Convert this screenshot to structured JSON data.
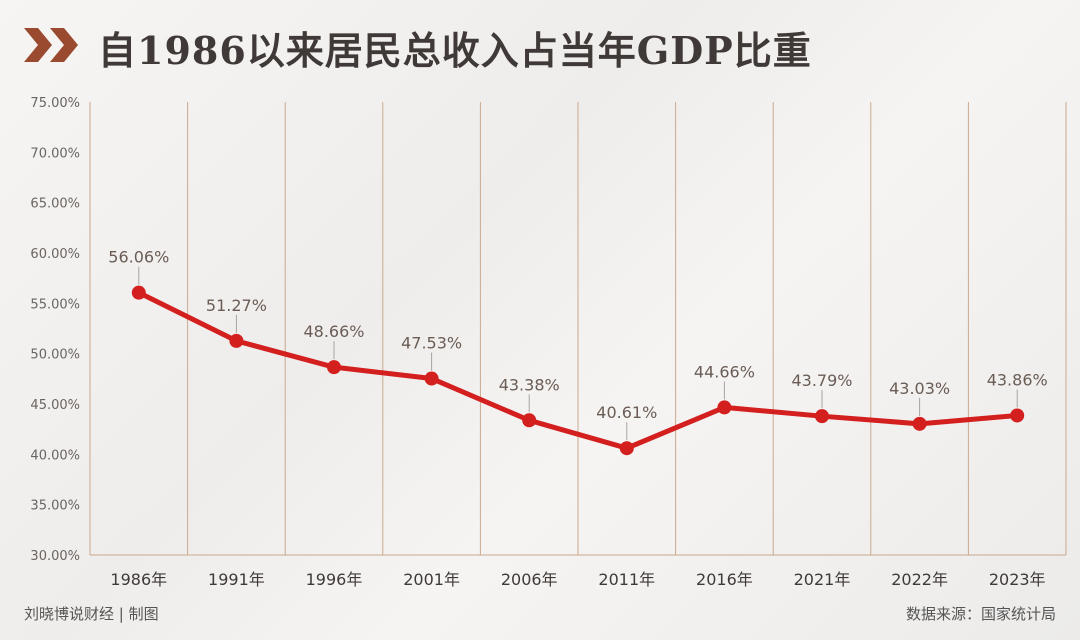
{
  "title": "自1986以来居民总收入占当年GDP比重",
  "footer": {
    "left": "刘晓博说财经 | 制图",
    "right": "数据来源：国家统计局"
  },
  "colors": {
    "line": "#d41f1f",
    "title": "#3f3a37",
    "chevron": "#9a4b2f",
    "grid": "#c9a98e",
    "axis_text": "#6a6460",
    "label_text": "#6a5c55"
  },
  "chart_data": {
    "type": "line",
    "categories": [
      "1986年",
      "1991年",
      "1996年",
      "2001年",
      "2006年",
      "2011年",
      "2016年",
      "2021年",
      "2022年",
      "2023年"
    ],
    "values": [
      56.06,
      51.27,
      48.66,
      47.53,
      43.38,
      40.61,
      44.66,
      43.79,
      43.03,
      43.86
    ],
    "data_labels": [
      "56.06%",
      "51.27%",
      "48.66%",
      "47.53%",
      "43.38%",
      "40.61%",
      "44.66%",
      "43.79%",
      "43.03%",
      "43.86%"
    ],
    "ylim": [
      30,
      75
    ],
    "y_ticks": [
      30,
      35,
      40,
      45,
      50,
      55,
      60,
      65,
      70,
      75
    ],
    "y_tick_labels": [
      "30.00%",
      "35.00%",
      "40.00%",
      "45.00%",
      "50.00%",
      "55.00%",
      "60.00%",
      "65.00%",
      "70.00%",
      "75.00%"
    ],
    "grid": "vertical",
    "legend": "none"
  }
}
